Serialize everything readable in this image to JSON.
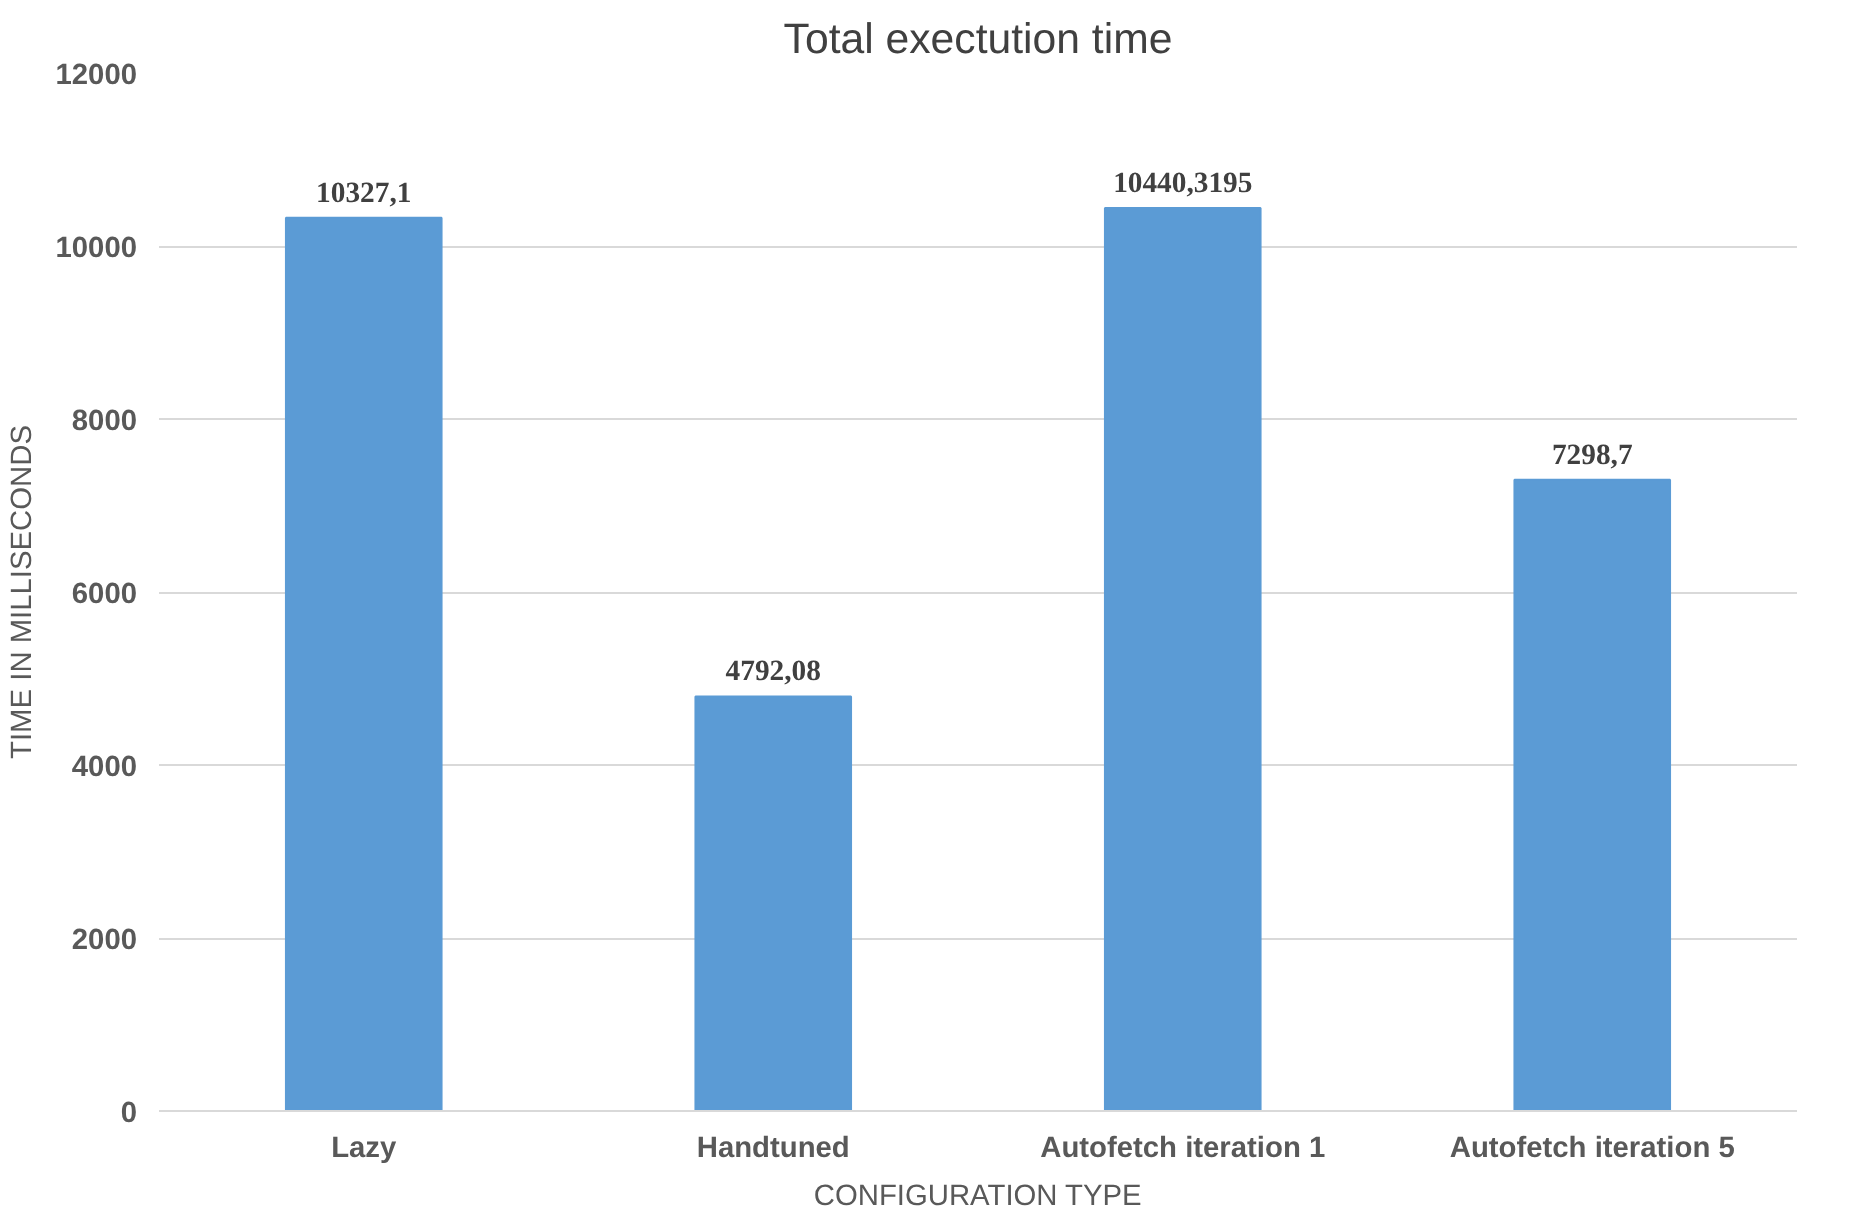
{
  "chart_data": {
    "type": "bar",
    "title": "Total exectution time",
    "xlabel": "CONFIGURATION TYPE",
    "ylabel": "TIME IN MILLISECONDS",
    "categories": [
      "Lazy",
      "Handtuned",
      "Autofetch iteration 1",
      "Autofetch iteration 5"
    ],
    "values": [
      10327.1,
      4792.08,
      10440.3195,
      7298.7
    ],
    "value_labels": [
      "10327,1",
      "4792,08",
      "10440,3195",
      "7298,7"
    ],
    "color": "#5b9bd5",
    "ylim": [
      0,
      12000
    ],
    "yticks": [
      0,
      2000,
      4000,
      6000,
      8000,
      10000,
      12000
    ],
    "grid": "y"
  }
}
